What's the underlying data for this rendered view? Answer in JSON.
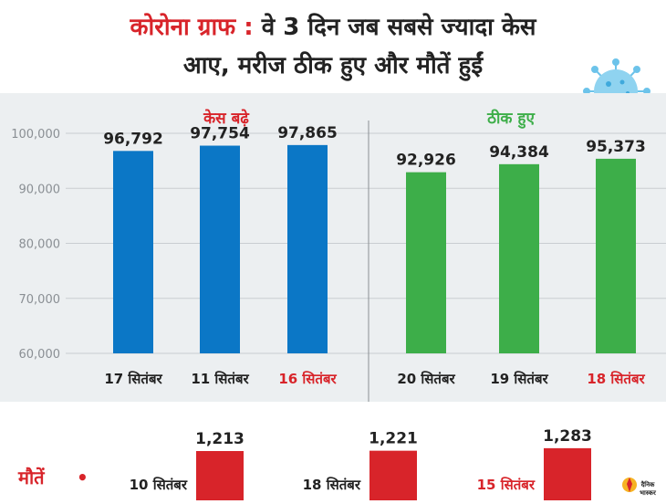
{
  "title": {
    "prefix": "कोरोना ग्राफ :",
    "line1_rest": "वे 3 दिन जब सबसे ज्यादा केस",
    "line2": "आए, मरीज ठीक हुए और मौतें हुईं"
  },
  "colors": {
    "cases": "#0b77c6",
    "recovered": "#3dae49",
    "deaths": "#d8242a",
    "highlight_text": "#d8242a"
  },
  "chart_data": [
    {
      "type": "bar",
      "title": "केस बढ़े",
      "categories": [
        "17 सितंबर",
        "11 सितंबर",
        "16 सितंबर"
      ],
      "values": [
        96792,
        97754,
        97865
      ],
      "value_labels": [
        "96,792",
        "97,754",
        "97,865"
      ],
      "highlight_category": "16 सितंबर",
      "ylim": [
        60000,
        100000
      ],
      "yticks": [
        "100,000",
        "90,000",
        "80,000",
        "70,000",
        "60,000"
      ],
      "ytick_values": [
        100000,
        90000,
        80000,
        70000,
        60000
      ],
      "grid": true
    },
    {
      "type": "bar",
      "title": "ठीक हुए",
      "categories": [
        "20 सितंबर",
        "19 सितंबर",
        "18 सितंबर"
      ],
      "values": [
        92926,
        94384,
        95373
      ],
      "value_labels": [
        "92,926",
        "94,384",
        "95,373"
      ],
      "highlight_category": "18 सितंबर",
      "ylim": [
        60000,
        100000
      ],
      "grid": true
    },
    {
      "type": "bar",
      "title": "मौतें",
      "title_marker": "•",
      "categories": [
        "10 सितंबर",
        "18 सितंबर",
        "15 सितंबर"
      ],
      "values": [
        1213,
        1221,
        1283
      ],
      "value_labels": [
        "1,213",
        "1,221",
        "1,283"
      ],
      "highlight_category": "15 सितंबर"
    }
  ],
  "logo": {
    "text": "दैनिक भास्कर"
  }
}
